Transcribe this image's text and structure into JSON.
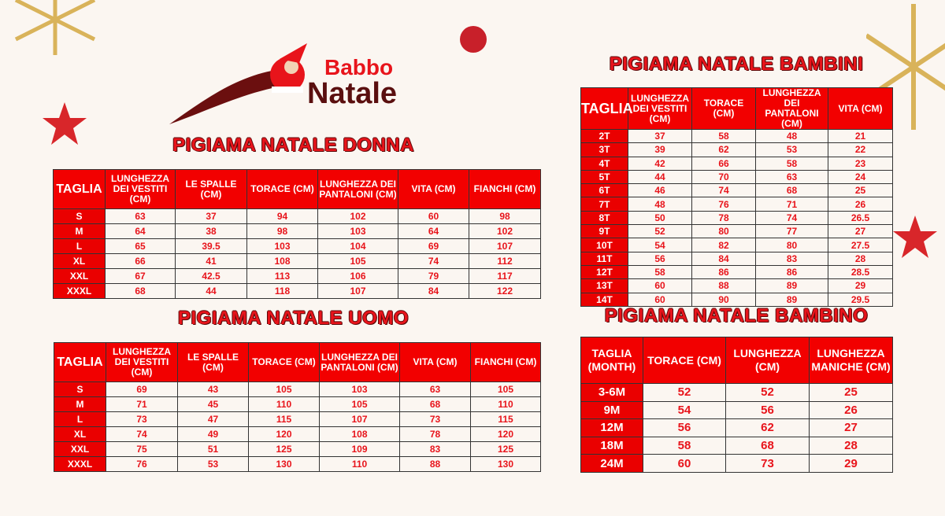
{
  "logo": {
    "line1": "Babbo",
    "line2": "Natale"
  },
  "tables": [
    {
      "title": "PIGIAMA NATALE DONNA",
      "headers": [
        "TAGLIA",
        "LUNGHEZZA DEI VESTITI (CM)",
        "LE SPALLE (CM)",
        "TORACE (CM)",
        "LUNGHEZZA DEI PANTALONI (CM)",
        "VITA (CM)",
        "FIANCHI (CM)"
      ],
      "rows": [
        [
          "S",
          "63",
          "37",
          "94",
          "102",
          "60",
          "98"
        ],
        [
          "M",
          "64",
          "38",
          "98",
          "103",
          "64",
          "102"
        ],
        [
          "L",
          "65",
          "39.5",
          "103",
          "104",
          "69",
          "107"
        ],
        [
          "XL",
          "66",
          "41",
          "108",
          "105",
          "74",
          "112"
        ],
        [
          "XXL",
          "67",
          "42.5",
          "113",
          "106",
          "79",
          "117"
        ],
        [
          "XXXL",
          "68",
          "44",
          "118",
          "107",
          "84",
          "122"
        ]
      ]
    },
    {
      "title": "PIGIAMA NATALE UOMO",
      "headers": [
        "TAGLIA",
        "LUNGHEZZA DEI VESTITI (CM)",
        "LE SPALLE (CM)",
        "TORACE (CM)",
        "LUNGHEZZA DEI PANTALONI (CM)",
        "VITA (CM)",
        "FIANCHI (CM)"
      ],
      "rows": [
        [
          "S",
          "69",
          "43",
          "105",
          "103",
          "63",
          "105"
        ],
        [
          "M",
          "71",
          "45",
          "110",
          "105",
          "68",
          "110"
        ],
        [
          "L",
          "73",
          "47",
          "115",
          "107",
          "73",
          "115"
        ],
        [
          "XL",
          "74",
          "49",
          "120",
          "108",
          "78",
          "120"
        ],
        [
          "XXL",
          "75",
          "51",
          "125",
          "109",
          "83",
          "125"
        ],
        [
          "XXXL",
          "76",
          "53",
          "130",
          "110",
          "88",
          "130"
        ]
      ]
    },
    {
      "title": "PIGIAMA NATALE BAMBINI",
      "headers": [
        "TAGLIA",
        "LUNGHEZZA DEI VESTITI (CM)",
        "TORACE (CM)",
        "LUNGHEZZA DEI PANTALONI (CM)",
        "VITA (CM)"
      ],
      "rows": [
        [
          "2T",
          "37",
          "58",
          "48",
          "21"
        ],
        [
          "3T",
          "39",
          "62",
          "53",
          "22"
        ],
        [
          "4T",
          "42",
          "66",
          "58",
          "23"
        ],
        [
          "5T",
          "44",
          "70",
          "63",
          "24"
        ],
        [
          "6T",
          "46",
          "74",
          "68",
          "25"
        ],
        [
          "7T",
          "48",
          "76",
          "71",
          "26"
        ],
        [
          "8T",
          "50",
          "78",
          "74",
          "26.5"
        ],
        [
          "9T",
          "52",
          "80",
          "77",
          "27"
        ],
        [
          "10T",
          "54",
          "82",
          "80",
          "27.5"
        ],
        [
          "11T",
          "56",
          "84",
          "83",
          "28"
        ],
        [
          "12T",
          "58",
          "86",
          "86",
          "28.5"
        ],
        [
          "13T",
          "60",
          "88",
          "89",
          "29"
        ],
        [
          "14T",
          "60",
          "90",
          "89",
          "29.5"
        ]
      ]
    },
    {
      "title": "PIGIAMA NATALE BAMBINO",
      "headers": [
        "TAGLIA (MONTH)",
        "TORACE (CM)",
        "LUNGHEZZA (CM)",
        "LUNGHEZZA MANICHE (CM)"
      ],
      "rows": [
        [
          "3-6M",
          "52",
          "52",
          "25"
        ],
        [
          "9M",
          "54",
          "56",
          "26"
        ],
        [
          "12M",
          "56",
          "62",
          "27"
        ],
        [
          "18M",
          "58",
          "68",
          "28"
        ],
        [
          "24M",
          "60",
          "73",
          "29"
        ]
      ]
    }
  ],
  "colors": {
    "header_red": "#f20000",
    "value_red": "#e8141b",
    "background": "#fbf6f1",
    "logo_dark": "#5a0f0f"
  }
}
